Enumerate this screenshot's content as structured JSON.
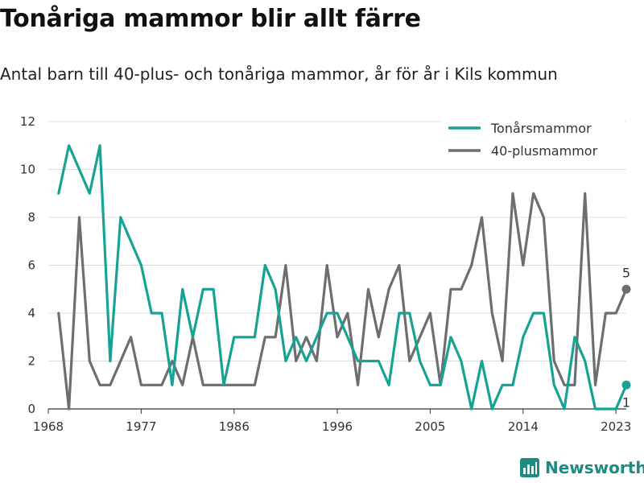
{
  "header": {
    "title": "Tonåriga mammor blir allt färre",
    "subtitle": "Antal barn till 40-plus- och tonåriga mammor, år för år i Kils kommun"
  },
  "brand": {
    "name": "Newsworthy",
    "color": "#1a8c84"
  },
  "chart_data": {
    "type": "line",
    "title": "Tonåriga mammor blir allt färre",
    "subtitle": "Antal barn till 40-plus- och tonåriga mammor, år för år i Kils kommun",
    "xlabel": "",
    "ylabel": "",
    "xlim": [
      1968,
      2024
    ],
    "ylim": [
      0,
      12
    ],
    "yticks": [
      0,
      2,
      4,
      6,
      8,
      10,
      12
    ],
    "xticks": [
      1968,
      1977,
      1986,
      1996,
      2005,
      2014,
      2023
    ],
    "grid": true,
    "legend_position": "top-right",
    "x": [
      1969,
      1970,
      1971,
      1972,
      1973,
      1974,
      1975,
      1976,
      1977,
      1978,
      1979,
      1980,
      1981,
      1982,
      1983,
      1984,
      1985,
      1986,
      1987,
      1988,
      1989,
      1990,
      1991,
      1992,
      1993,
      1994,
      1995,
      1996,
      1997,
      1998,
      1999,
      2000,
      2001,
      2002,
      2003,
      2004,
      2005,
      2006,
      2007,
      2008,
      2009,
      2010,
      2011,
      2012,
      2013,
      2014,
      2015,
      2016,
      2017,
      2018,
      2019,
      2020,
      2021,
      2022,
      2023,
      2024
    ],
    "series": [
      {
        "name": "Tonårsmammor",
        "color": "#16a394",
        "values": [
          9,
          11,
          10,
          9,
          11,
          2,
          8,
          7,
          6,
          4,
          4,
          1,
          5,
          3,
          5,
          5,
          1,
          3,
          3,
          3,
          6,
          5,
          2,
          3,
          2,
          3,
          4,
          4,
          3,
          2,
          2,
          2,
          1,
          4,
          4,
          2,
          1,
          1,
          3,
          2,
          0,
          2,
          0,
          1,
          1,
          3,
          4,
          4,
          1,
          0,
          3,
          2,
          0,
          0,
          0,
          1
        ],
        "end_label": "1"
      },
      {
        "name": "40-plusmammor",
        "color": "#6e6e72",
        "values": [
          4,
          0,
          8,
          2,
          1,
          1,
          2,
          3,
          1,
          1,
          1,
          2,
          1,
          3,
          1,
          1,
          1,
          1,
          1,
          1,
          3,
          3,
          6,
          2,
          3,
          2,
          6,
          3,
          4,
          1,
          5,
          3,
          5,
          6,
          2,
          3,
          4,
          1,
          5,
          5,
          6,
          8,
          4,
          2,
          9,
          6,
          9,
          8,
          2,
          1,
          1,
          9,
          1,
          4,
          4,
          5
        ],
        "end_label": "5"
      }
    ]
  }
}
